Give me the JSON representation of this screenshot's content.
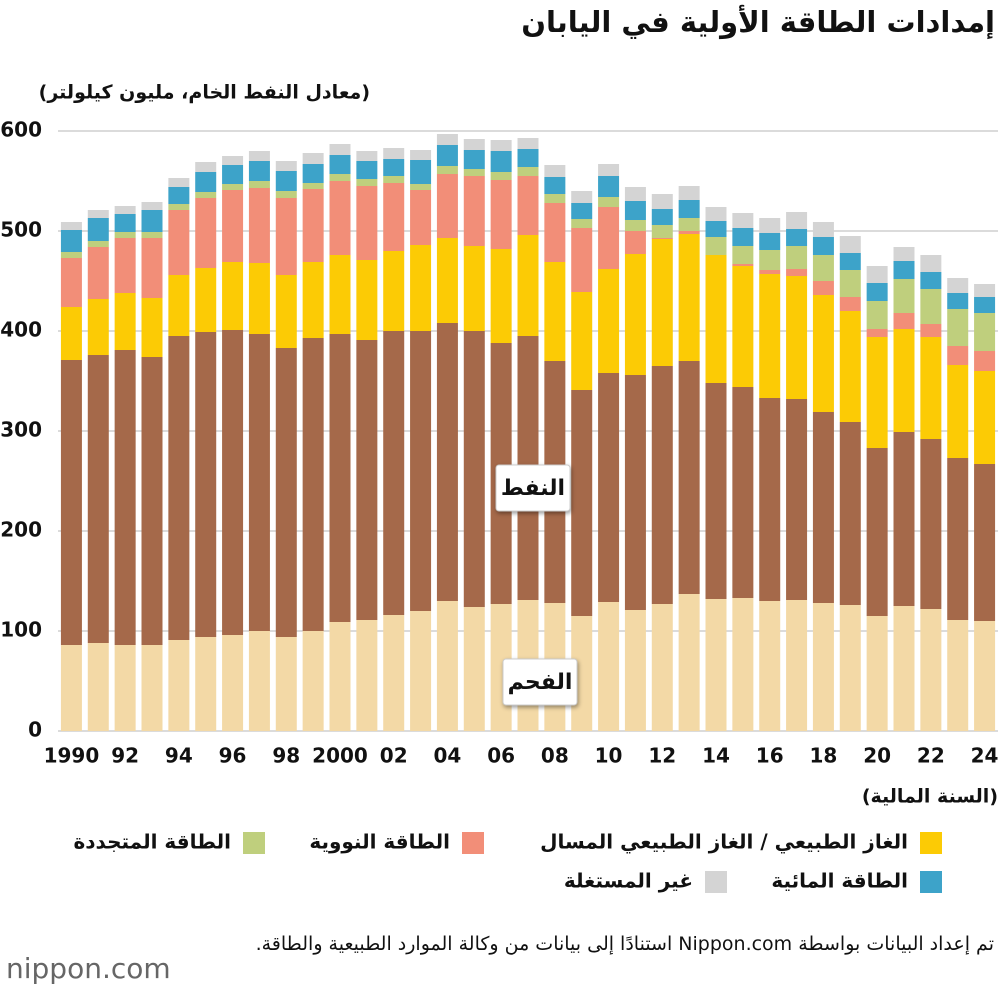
{
  "chart_data": {
    "type": "stacked-bar",
    "title": "إمدادات الطاقة الأولية في اليابان",
    "y_label": "(معادل النفط الخام، مليون كيلولتر)",
    "x_label": "(السنة المالية)",
    "categories": [
      "1990",
      null,
      "92",
      null,
      "94",
      null,
      "96",
      null,
      "98",
      null,
      "2000",
      null,
      "02",
      null,
      "04",
      null,
      "06",
      null,
      "08",
      null,
      "10",
      null,
      "12",
      null,
      "14",
      null,
      "16",
      null,
      "18",
      null,
      "20",
      null,
      "22",
      null,
      "24"
    ],
    "ylim": [
      0,
      600
    ],
    "yticks": [
      0,
      100,
      200,
      300,
      400,
      500,
      600
    ],
    "grid": true,
    "series": [
      {
        "name": "الفحم",
        "color": "#f3d9a6",
        "values": [
          86,
          88,
          86,
          86,
          91,
          94,
          96,
          100,
          94,
          100,
          109,
          111,
          116,
          120,
          130,
          124,
          127,
          131,
          128,
          115,
          129,
          121,
          127,
          137,
          132,
          133,
          130,
          131,
          128,
          126,
          115,
          125,
          122,
          111,
          110
        ]
      },
      {
        "name": "النفط",
        "color": "#a5694a",
        "values": [
          285,
          288,
          295,
          288,
          304,
          305,
          305,
          297,
          289,
          293,
          288,
          280,
          284,
          280,
          278,
          276,
          261,
          264,
          242,
          226,
          229,
          235,
          238,
          233,
          216,
          211,
          203,
          201,
          191,
          183,
          168,
          174,
          170,
          162,
          157
        ]
      },
      {
        "name": "الغاز الطبيعي / الغاز الطبيعي المسال",
        "color": "#fccb05",
        "values": [
          53,
          56,
          57,
          59,
          61,
          64,
          68,
          71,
          73,
          76,
          79,
          80,
          80,
          86,
          85,
          85,
          94,
          101,
          99,
          98,
          104,
          121,
          127,
          127,
          128,
          121,
          124,
          123,
          117,
          111,
          111,
          103,
          102,
          93,
          93
        ]
      },
      {
        "name": "الطاقة النووية",
        "color": "#f28e78",
        "values": [
          49,
          52,
          55,
          60,
          65,
          70,
          72,
          75,
          77,
          73,
          74,
          74,
          68,
          55,
          64,
          70,
          69,
          59,
          59,
          64,
          62,
          23,
          1,
          3,
          0,
          2,
          4,
          7,
          14,
          14,
          8,
          16,
          13,
          19,
          20
        ]
      },
      {
        "name": "الطاقة المتجددة",
        "color": "#bfcf7d",
        "values": [
          6,
          6,
          6,
          6,
          6,
          6,
          6,
          7,
          7,
          6,
          7,
          7,
          7,
          6,
          8,
          7,
          8,
          9,
          9,
          9,
          10,
          11,
          13,
          13,
          18,
          18,
          20,
          23,
          26,
          27,
          28,
          34,
          35,
          37,
          38
        ]
      },
      {
        "name": "الطاقة المائية",
        "color": "#3da3c9",
        "values": [
          22,
          23,
          18,
          22,
          17,
          20,
          19,
          20,
          20,
          19,
          19,
          18,
          17,
          24,
          21,
          19,
          21,
          18,
          17,
          16,
          21,
          19,
          16,
          18,
          16,
          18,
          17,
          17,
          18,
          17,
          18,
          18,
          17,
          16,
          16
        ]
      },
      {
        "name": "غير المستغلة",
        "color": "#d4d4d4",
        "values": [
          8,
          8,
          8,
          8,
          9,
          10,
          9,
          10,
          10,
          11,
          11,
          10,
          11,
          10,
          11,
          11,
          11,
          11,
          12,
          12,
          12,
          14,
          15,
          14,
          14,
          15,
          15,
          17,
          15,
          17,
          17,
          14,
          17,
          15,
          13
        ]
      }
    ],
    "source": "تم إعداد البيانات بواسطة Nippon.com استنادًا إلى بيانات من وكالة الموارد الطبيعية والطاقة.",
    "logo": "nippon.com"
  }
}
